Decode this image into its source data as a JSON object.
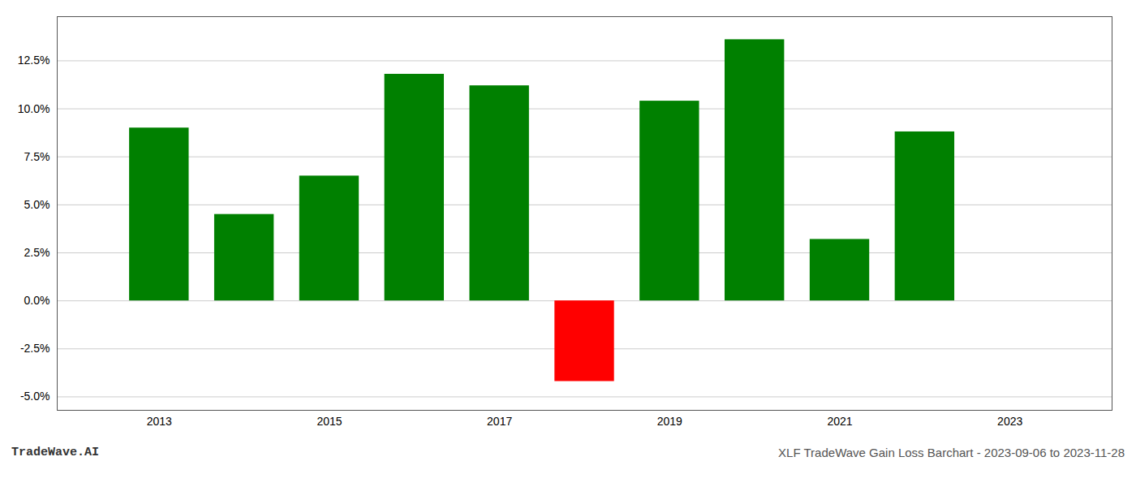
{
  "chart_data": {
    "type": "bar",
    "title": "XLF TradeWave Gain Loss Barchart - 2023-09-06 to 2023-11-28",
    "annotations": [
      "TradeWave.AI"
    ],
    "x": [
      2013,
      2014,
      2015,
      2016,
      2017,
      2018,
      2019,
      2020,
      2021,
      2022
    ],
    "values": [
      0.09,
      0.045,
      0.065,
      0.118,
      0.112,
      -0.042,
      0.104,
      0.136,
      0.032,
      0.088
    ],
    "colors": [
      "#008000",
      "#008000",
      "#008000",
      "#008000",
      "#008000",
      "#ff0000",
      "#008000",
      "#008000",
      "#008000",
      "#008000"
    ],
    "xlim": [
      2011.8,
      2024.2
    ],
    "xticks": [
      2013,
      2015,
      2017,
      2019,
      2021,
      2023
    ],
    "ylim": [
      -0.057,
      0.148
    ],
    "yticks": [
      {
        "value": -0.05,
        "label": "-5.0%"
      },
      {
        "value": -0.025,
        "label": "-2.5%"
      },
      {
        "value": 0.0,
        "label": "0.0%"
      },
      {
        "value": 0.025,
        "label": "2.5%"
      },
      {
        "value": 0.05,
        "label": "5.0%"
      },
      {
        "value": 0.075,
        "label": "7.5%"
      },
      {
        "value": 0.1,
        "label": "10.0%"
      },
      {
        "value": 0.125,
        "label": "12.5%"
      }
    ],
    "grid": true
  }
}
